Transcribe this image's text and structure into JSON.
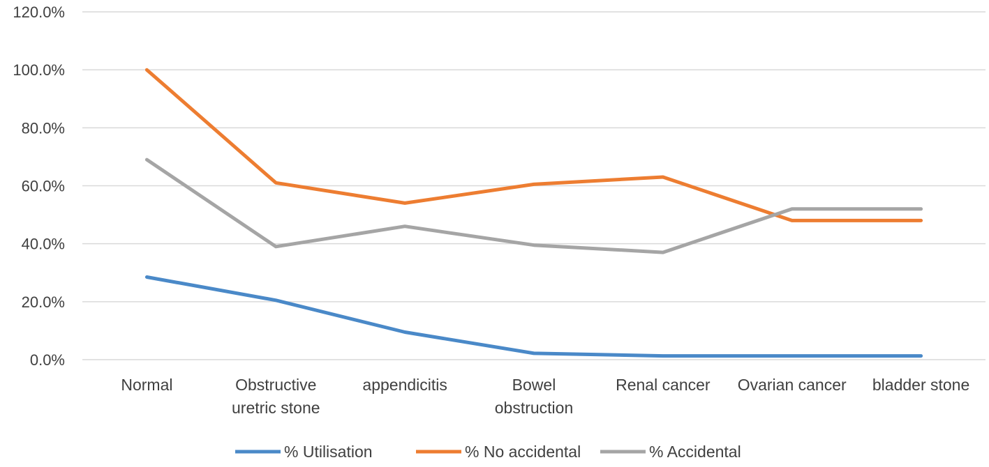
{
  "chart_data": {
    "type": "line",
    "categories": [
      [
        "Normal"
      ],
      [
        "Obstructive",
        "uretric stone"
      ],
      [
        "appendicitis"
      ],
      [
        "Bowel",
        "obstruction"
      ],
      [
        "Renal cancer"
      ],
      [
        "Ovarian cancer"
      ],
      [
        "bladder stone"
      ]
    ],
    "series": [
      {
        "name": "% Utilisation",
        "color": "#4A89C8",
        "values": [
          28.5,
          20.5,
          9.5,
          2.2,
          1.3,
          1.3,
          1.3
        ]
      },
      {
        "name": "% No accidental",
        "color": "#ED7D31",
        "values": [
          100.0,
          61.0,
          54.0,
          60.5,
          63.0,
          48.0,
          48.0
        ]
      },
      {
        "name": "% Accidental",
        "color": "#A5A5A5",
        "values": [
          69.0,
          39.0,
          46.0,
          39.5,
          37.0,
          52.0,
          52.0
        ]
      }
    ],
    "y_ticks": [
      "0.0%",
      "20.0%",
      "40.0%",
      "60.0%",
      "80.0%",
      "100.0%",
      "120.0%"
    ],
    "ylim": [
      0,
      120
    ],
    "grid": true,
    "legend_position": "bottom"
  }
}
